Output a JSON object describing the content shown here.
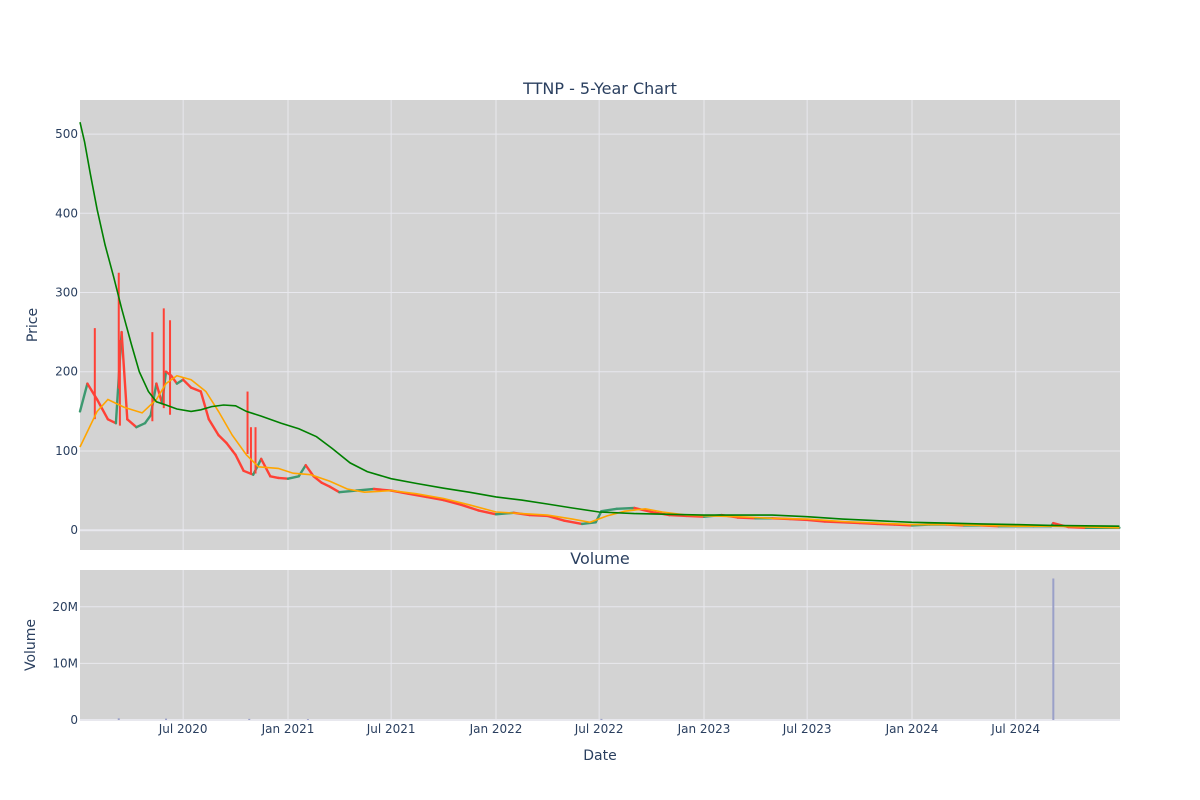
{
  "chart_data": [
    {
      "type": "candlestick",
      "title": "TTNP - 5-Year Chart",
      "ylabel": "Price",
      "xlabel": "",
      "ylim": [
        -25,
        543
      ],
      "yticks": [
        0,
        100,
        200,
        300,
        400,
        500
      ],
      "grid": true,
      "legend": "none",
      "colors": {
        "increasing": "#3d9970",
        "decreasing": "#ff4136",
        "ma_short": "#ffa500",
        "ma_long": "#008000",
        "plot_bg": "#d3d3d3",
        "grid": "#e8e8ee"
      },
      "price_path": [
        [
          "2020-01-02",
          150
        ],
        [
          "2020-01-15",
          185
        ],
        [
          "2020-02-01",
          165
        ],
        [
          "2020-02-20",
          140
        ],
        [
          "2020-03-05",
          135
        ],
        [
          "2020-03-15",
          250
        ],
        [
          "2020-03-25",
          140
        ],
        [
          "2020-04-10",
          130
        ],
        [
          "2020-04-25",
          135
        ],
        [
          "2020-05-05",
          145
        ],
        [
          "2020-05-15",
          185
        ],
        [
          "2020-05-25",
          160
        ],
        [
          "2020-06-01",
          200
        ],
        [
          "2020-06-10",
          195
        ],
        [
          "2020-06-20",
          185
        ],
        [
          "2020-07-01",
          190
        ],
        [
          "2020-07-15",
          180
        ],
        [
          "2020-08-01",
          175
        ],
        [
          "2020-08-15",
          140
        ],
        [
          "2020-09-01",
          120
        ],
        [
          "2020-09-15",
          110
        ],
        [
          "2020-10-01",
          95
        ],
        [
          "2020-10-15",
          75
        ],
        [
          "2020-11-01",
          70
        ],
        [
          "2020-11-15",
          90
        ],
        [
          "2020-12-01",
          68
        ],
        [
          "2020-12-15",
          66
        ],
        [
          "2021-01-01",
          65
        ],
        [
          "2021-01-20",
          68
        ],
        [
          "2021-02-01",
          82
        ],
        [
          "2021-02-15",
          68
        ],
        [
          "2021-03-01",
          60
        ],
        [
          "2021-03-15",
          55
        ],
        [
          "2021-04-01",
          48
        ],
        [
          "2021-05-01",
          50
        ],
        [
          "2021-06-01",
          52
        ],
        [
          "2021-07-01",
          50
        ],
        [
          "2021-08-01",
          46
        ],
        [
          "2021-09-01",
          42
        ],
        [
          "2021-10-01",
          38
        ],
        [
          "2021-11-01",
          32
        ],
        [
          "2021-12-01",
          25
        ],
        [
          "2022-01-01",
          20
        ],
        [
          "2022-02-01",
          22
        ],
        [
          "2022-03-01",
          19
        ],
        [
          "2022-04-01",
          18
        ],
        [
          "2022-05-01",
          12
        ],
        [
          "2022-06-01",
          8
        ],
        [
          "2022-06-25",
          10
        ],
        [
          "2022-07-05",
          24
        ],
        [
          "2022-08-01",
          27
        ],
        [
          "2022-09-01",
          28
        ],
        [
          "2022-10-01",
          23
        ],
        [
          "2022-11-01",
          19
        ],
        [
          "2022-12-01",
          18
        ],
        [
          "2023-01-01",
          17
        ],
        [
          "2023-02-01",
          19
        ],
        [
          "2023-03-01",
          16
        ],
        [
          "2023-04-01",
          15
        ],
        [
          "2023-05-01",
          15
        ],
        [
          "2023-06-01",
          14
        ],
        [
          "2023-07-01",
          13
        ],
        [
          "2023-08-01",
          11
        ],
        [
          "2023-09-01",
          10
        ],
        [
          "2023-10-01",
          9
        ],
        [
          "2023-11-01",
          8
        ],
        [
          "2023-12-01",
          7
        ],
        [
          "2024-01-01",
          6
        ],
        [
          "2024-02-01",
          7
        ],
        [
          "2024-03-01",
          7
        ],
        [
          "2024-04-01",
          6
        ],
        [
          "2024-05-01",
          6
        ],
        [
          "2024-06-01",
          5
        ],
        [
          "2024-07-01",
          5
        ],
        [
          "2024-08-01",
          5
        ],
        [
          "2024-09-01",
          5
        ],
        [
          "2024-09-05",
          9
        ],
        [
          "2024-10-01",
          4
        ],
        [
          "2024-11-01",
          3
        ],
        [
          "2024-12-01",
          3
        ],
        [
          "2024-12-30",
          3
        ]
      ],
      "spikes": [
        [
          "2020-03-10",
          325
        ],
        [
          "2020-03-12",
          240
        ],
        [
          "2020-05-28",
          280
        ],
        [
          "2020-06-08",
          265
        ],
        [
          "2020-05-08",
          250
        ],
        [
          "2020-01-28",
          255
        ],
        [
          "2020-10-22",
          175
        ],
        [
          "2020-10-28",
          130
        ],
        [
          "2020-11-05",
          130
        ]
      ],
      "ma_short": [
        [
          "2020-01-02",
          105
        ],
        [
          "2020-02-01",
          150
        ],
        [
          "2020-02-20",
          165
        ],
        [
          "2020-03-20",
          155
        ],
        [
          "2020-04-20",
          148
        ],
        [
          "2020-05-15",
          165
        ],
        [
          "2020-06-01",
          185
        ],
        [
          "2020-06-20",
          195
        ],
        [
          "2020-07-15",
          190
        ],
        [
          "2020-08-10",
          175
        ],
        [
          "2020-09-01",
          150
        ],
        [
          "2020-09-25",
          120
        ],
        [
          "2020-10-20",
          95
        ],
        [
          "2020-11-10",
          80
        ],
        [
          "2020-12-15",
          78
        ],
        [
          "2021-01-10",
          72
        ],
        [
          "2021-02-10",
          70
        ],
        [
          "2021-03-15",
          62
        ],
        [
          "2021-04-15",
          52
        ],
        [
          "2021-05-15",
          48
        ],
        [
          "2021-07-01",
          50
        ],
        [
          "2021-08-15",
          46
        ],
        [
          "2021-10-01",
          40
        ],
        [
          "2021-11-15",
          32
        ],
        [
          "2022-01-01",
          23
        ],
        [
          "2022-02-15",
          21
        ],
        [
          "2022-04-01",
          19
        ],
        [
          "2022-05-15",
          14
        ],
        [
          "2022-06-15",
          10
        ],
        [
          "2022-07-15",
          18
        ],
        [
          "2022-08-15",
          24
        ],
        [
          "2022-09-20",
          27
        ],
        [
          "2022-10-20",
          23
        ],
        [
          "2022-12-01",
          19
        ],
        [
          "2023-01-15",
          18
        ],
        [
          "2023-03-01",
          17
        ],
        [
          "2023-05-01",
          15
        ],
        [
          "2023-07-01",
          14
        ],
        [
          "2023-09-01",
          11
        ],
        [
          "2023-11-01",
          9
        ],
        [
          "2024-01-01",
          7
        ],
        [
          "2024-03-01",
          7
        ],
        [
          "2024-05-01",
          6
        ],
        [
          "2024-07-01",
          5
        ],
        [
          "2024-09-01",
          5
        ],
        [
          "2024-11-01",
          4
        ],
        [
          "2024-12-30",
          3
        ]
      ],
      "ma_long": [
        [
          "2020-01-02",
          515
        ],
        [
          "2020-01-10",
          490
        ],
        [
          "2020-01-20",
          450
        ],
        [
          "2020-02-01",
          405
        ],
        [
          "2020-02-15",
          360
        ],
        [
          "2020-03-01",
          320
        ],
        [
          "2020-03-15",
          280
        ],
        [
          "2020-04-01",
          235
        ],
        [
          "2020-04-15",
          200
        ],
        [
          "2020-05-01",
          175
        ],
        [
          "2020-05-15",
          162
        ],
        [
          "2020-06-01",
          158
        ],
        [
          "2020-06-20",
          153
        ],
        [
          "2020-07-15",
          150
        ],
        [
          "2020-08-01",
          152
        ],
        [
          "2020-08-20",
          156
        ],
        [
          "2020-09-10",
          158
        ],
        [
          "2020-10-01",
          157
        ],
        [
          "2020-10-20",
          150
        ],
        [
          "2020-11-15",
          144
        ],
        [
          "2020-12-20",
          135
        ],
        [
          "2021-01-20",
          128
        ],
        [
          "2021-02-20",
          118
        ],
        [
          "2021-03-20",
          103
        ],
        [
          "2021-04-20",
          85
        ],
        [
          "2021-05-20",
          74
        ],
        [
          "2021-07-01",
          65
        ],
        [
          "2021-08-15",
          59
        ],
        [
          "2021-10-01",
          53
        ],
        [
          "2021-11-15",
          48
        ],
        [
          "2022-01-01",
          42
        ],
        [
          "2022-02-15",
          38
        ],
        [
          "2022-04-01",
          33
        ],
        [
          "2022-05-15",
          28
        ],
        [
          "2022-07-01",
          23
        ],
        [
          "2022-09-01",
          21
        ],
        [
          "2022-11-01",
          20
        ],
        [
          "2023-01-01",
          19
        ],
        [
          "2023-03-01",
          19
        ],
        [
          "2023-05-01",
          19
        ],
        [
          "2023-07-01",
          17
        ],
        [
          "2023-09-01",
          14
        ],
        [
          "2023-11-01",
          12
        ],
        [
          "2024-01-01",
          10
        ],
        [
          "2024-03-01",
          9
        ],
        [
          "2024-05-01",
          8
        ],
        [
          "2024-07-01",
          7
        ],
        [
          "2024-09-01",
          6
        ],
        [
          "2024-12-30",
          5
        ]
      ]
    },
    {
      "type": "bar",
      "title": "Volume",
      "ylabel": "Volume",
      "xlabel": "Date",
      "ylim": [
        0,
        26500000
      ],
      "yticks": [
        0,
        10000000,
        20000000
      ],
      "ytick_labels": [
        "0",
        "10M",
        "20M"
      ],
      "xlim": [
        "2020-01-02",
        "2024-12-31"
      ],
      "xticks": [
        "2020-07-01",
        "2021-01-01",
        "2021-07-01",
        "2022-01-01",
        "2022-07-01",
        "2023-01-01",
        "2023-07-01",
        "2024-01-01",
        "2024-07-01"
      ],
      "xtick_labels": [
        "Jul 2020",
        "Jan 2021",
        "Jul 2021",
        "Jan 2022",
        "Jul 2022",
        "Jan 2023",
        "Jul 2023",
        "Jan 2024",
        "Jul 2024"
      ],
      "grid": true,
      "bars": [
        [
          "2020-03-10",
          300000
        ],
        [
          "2020-06-01",
          250000
        ],
        [
          "2020-10-25",
          200000
        ],
        [
          "2021-02-05",
          150000
        ],
        [
          "2022-07-05",
          200000
        ],
        [
          "2024-09-05",
          25000000
        ]
      ],
      "colors": {
        "bar": "#9aa0c8",
        "plot_bg": "#d3d3d3",
        "grid": "#e8e8ee"
      }
    }
  ]
}
